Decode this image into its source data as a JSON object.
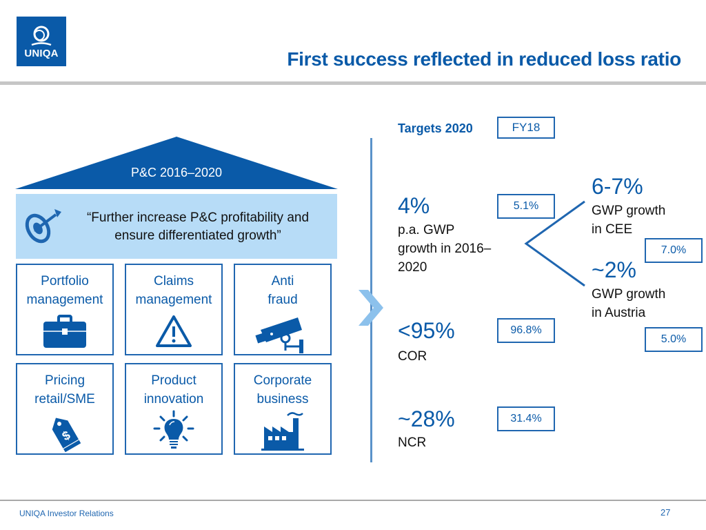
{
  "logo": {
    "text": "UNIQA"
  },
  "title": "First success reflected in reduced loss ratio",
  "house": {
    "roof_label": "P&C 2016–2020",
    "mission": "“Further increase P&C profitability and ensure differentiated growth”",
    "mission_icon": "target-arrow-icon",
    "tiles": [
      {
        "label": "Portfolio\nmanagement",
        "icon": "briefcase-icon"
      },
      {
        "label": "Claims\nmanagement",
        "icon": "warning-icon"
      },
      {
        "label": "Anti\nfraud",
        "icon": "security-camera-icon"
      },
      {
        "label": "Pricing\nretail/SME",
        "icon": "price-tag-icon"
      },
      {
        "label": "Product\ninnovation",
        "icon": "lightbulb-icon"
      },
      {
        "label": "Corporate\nbusiness",
        "icon": "factory-icon"
      }
    ]
  },
  "targets": {
    "header": "Targets 2020",
    "fy_label": "FY18",
    "gwp": {
      "target": "4%",
      "desc": "p.a. GWP\ngrowth in 2016–\n2020",
      "actual": "5.1%"
    },
    "cee": {
      "target": "6-7%",
      "desc": "GWP growth\nin CEE",
      "actual": "7.0%"
    },
    "austria": {
      "target": "~2%",
      "desc": "GWP growth\nin Austria",
      "actual": "5.0%"
    },
    "cor": {
      "target": "<95%",
      "desc": "COR",
      "actual": "96.8%"
    },
    "ncr": {
      "target": "~28%",
      "desc": "NCR",
      "actual": "31.4%"
    }
  },
  "footer": {
    "left": "UNIQA Investor Relations",
    "page": "27"
  },
  "colors": {
    "brand": "#0a5aa8",
    "light": "#b7dcf7",
    "rule": "#c6c6c6"
  }
}
